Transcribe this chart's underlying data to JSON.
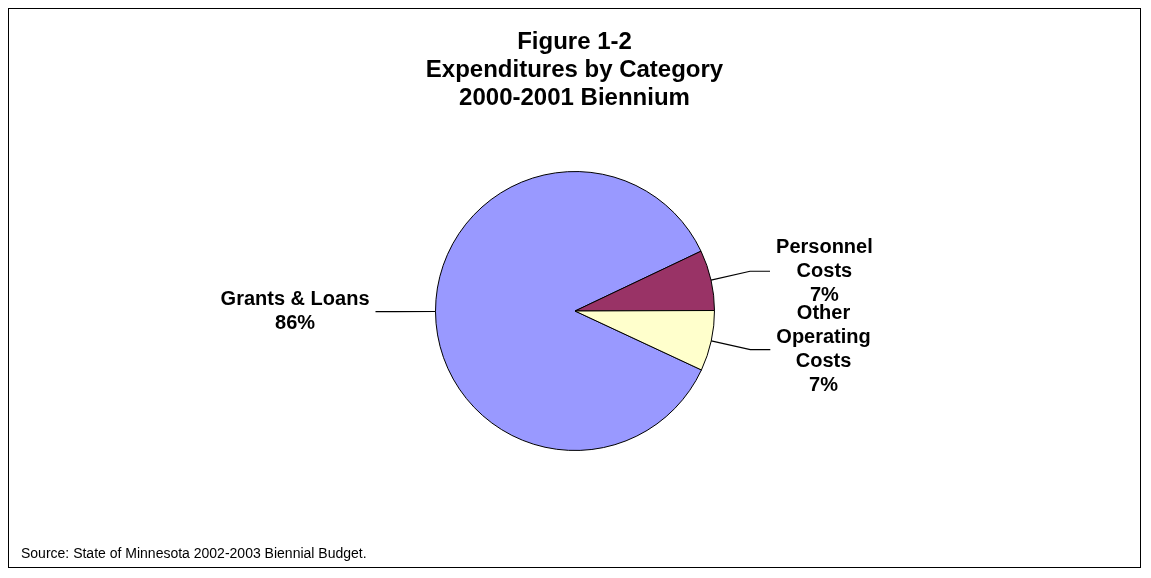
{
  "chart_data": {
    "type": "pie",
    "title": "Figure 1-2\nExpenditures by Category\n2000-2001 Biennium",
    "categories": [
      "Grants & Loans",
      "Personnel Costs",
      "Other Operating Costs"
    ],
    "values": [
      86,
      7,
      7
    ],
    "colors": [
      "#9999ff",
      "#993366",
      "#ffffcc"
    ],
    "value_labels": [
      "86%",
      "7%",
      "7%"
    ],
    "legend": false,
    "annotations": [
      "Source:  State of Minnesota 2002-2003 Biennial Budget."
    ]
  }
}
